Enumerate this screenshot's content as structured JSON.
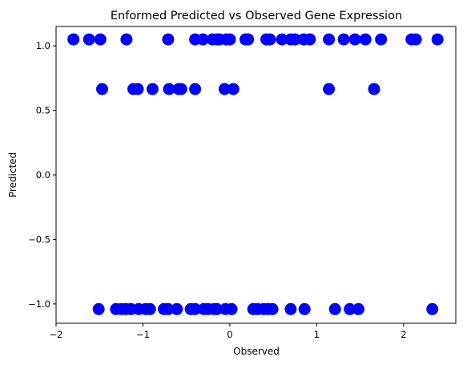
{
  "chart_data": {
    "type": "scatter",
    "title": "Enformed Predicted vs Observed Gene Expression",
    "xlabel": "Observed",
    "ylabel": "Predicted",
    "xlim": [
      -2.0,
      2.6
    ],
    "ylim": [
      -1.15,
      1.15
    ],
    "xticks": [
      -2,
      -1,
      0,
      1,
      2
    ],
    "xtick_labels": [
      "−2",
      "−1",
      "0",
      "1",
      "2"
    ],
    "yticks": [
      -1.0,
      -0.5,
      0.0,
      0.5,
      1.0
    ],
    "ytick_labels": [
      "−1.0",
      "−0.5",
      "0.0",
      "0.5",
      "1.0"
    ],
    "grid": false,
    "legend": "none",
    "marker_color": "#0000ff",
    "series": [
      {
        "points": [
          [
            -1.8,
            1.05
          ],
          [
            -1.62,
            1.05
          ],
          [
            -1.49,
            1.05
          ],
          [
            -1.19,
            1.05
          ],
          [
            -0.71,
            1.05
          ],
          [
            -0.4,
            1.05
          ],
          [
            -0.31,
            1.05
          ],
          [
            -0.2,
            1.05
          ],
          [
            -0.15,
            1.05
          ],
          [
            -0.12,
            1.05
          ],
          [
            -0.04,
            1.05
          ],
          [
            0.0,
            1.05
          ],
          [
            0.18,
            1.05
          ],
          [
            0.21,
            1.05
          ],
          [
            0.42,
            1.05
          ],
          [
            0.46,
            1.05
          ],
          [
            0.6,
            1.05
          ],
          [
            0.7,
            1.05
          ],
          [
            0.75,
            1.05
          ],
          [
            0.85,
            1.05
          ],
          [
            0.92,
            1.05
          ],
          [
            1.14,
            1.05
          ],
          [
            1.31,
            1.05
          ],
          [
            1.44,
            1.05
          ],
          [
            1.56,
            1.05
          ],
          [
            1.74,
            1.05
          ],
          [
            2.09,
            1.05
          ],
          [
            2.14,
            1.05
          ],
          [
            2.39,
            1.05
          ],
          [
            -1.47,
            0.665
          ],
          [
            -1.11,
            0.665
          ],
          [
            -1.06,
            0.665
          ],
          [
            -0.89,
            0.665
          ],
          [
            -0.7,
            0.665
          ],
          [
            -0.59,
            0.665
          ],
          [
            -0.56,
            0.665
          ],
          [
            -0.4,
            0.665
          ],
          [
            -0.06,
            0.665
          ],
          [
            0.04,
            0.665
          ],
          [
            1.14,
            0.665
          ],
          [
            1.66,
            0.665
          ],
          [
            -1.51,
            -1.04
          ],
          [
            -1.31,
            -1.04
          ],
          [
            -1.25,
            -1.04
          ],
          [
            -1.2,
            -1.04
          ],
          [
            -1.14,
            -1.04
          ],
          [
            -1.05,
            -1.04
          ],
          [
            -0.97,
            -1.04
          ],
          [
            -0.92,
            -1.04
          ],
          [
            -0.76,
            -1.04
          ],
          [
            -0.71,
            -1.04
          ],
          [
            -0.61,
            -1.04
          ],
          [
            -0.45,
            -1.04
          ],
          [
            -0.4,
            -1.04
          ],
          [
            -0.3,
            -1.04
          ],
          [
            -0.25,
            -1.04
          ],
          [
            -0.18,
            -1.04
          ],
          [
            -0.15,
            -1.04
          ],
          [
            -0.05,
            -1.04
          ],
          [
            0.02,
            -1.04
          ],
          [
            0.27,
            -1.04
          ],
          [
            0.32,
            -1.04
          ],
          [
            0.39,
            -1.04
          ],
          [
            0.44,
            -1.04
          ],
          [
            0.49,
            -1.04
          ],
          [
            0.7,
            -1.04
          ],
          [
            0.86,
            -1.04
          ],
          [
            1.21,
            -1.04
          ],
          [
            1.38,
            -1.04
          ],
          [
            1.48,
            -1.04
          ],
          [
            2.33,
            -1.04
          ]
        ]
      }
    ]
  }
}
